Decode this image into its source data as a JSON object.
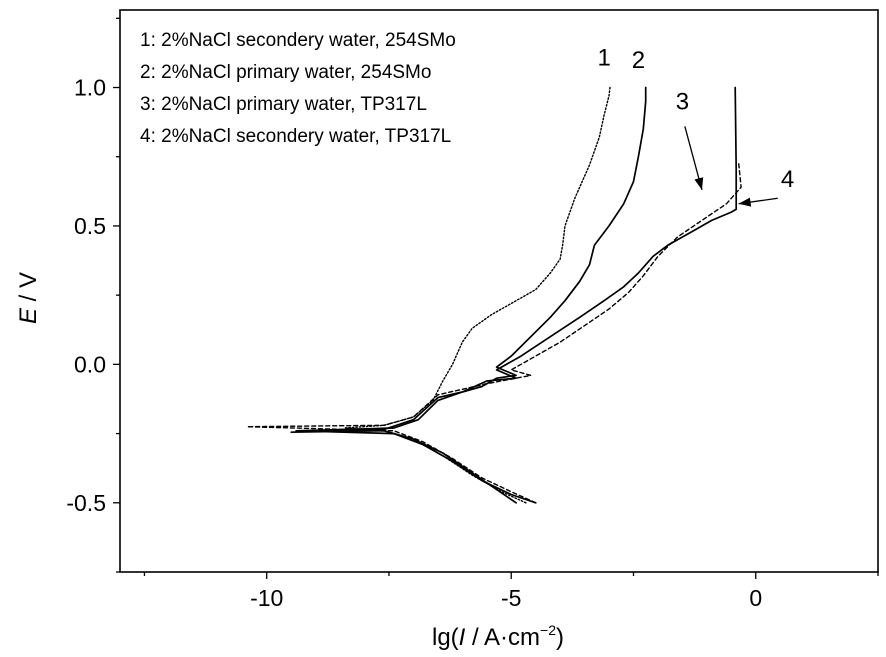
{
  "chart_data": {
    "type": "line",
    "title": "",
    "xlabel_parts": [
      "lg(",
      "I",
      " / A·cm",
      "−2",
      ")"
    ],
    "ylabel_parts": [
      "E",
      " / V"
    ],
    "xlim": [
      -13,
      2.5
    ],
    "ylim": [
      -0.75,
      1.28
    ],
    "x_ticks": [
      -10,
      -5,
      0
    ],
    "x_tick_labels": [
      "-10",
      "-5",
      "0"
    ],
    "y_ticks": [
      -0.5,
      0.0,
      0.5,
      1.0
    ],
    "y_tick_labels": [
      "-0.5",
      "0.0",
      "0.5",
      "1.0"
    ],
    "legend": [
      "1: 2%NaCl secondery water, 254SMo",
      "2: 2%NaCl primary water, 254SMo",
      "3: 2%NaCl primary water, TP317L",
      "4: 2%NaCl secondery water, TP317L"
    ],
    "series": [
      {
        "name": "1",
        "style": "dotted",
        "points": [
          [
            -4.7,
            -0.5
          ],
          [
            -5.2,
            -0.46
          ],
          [
            -5.8,
            -0.4
          ],
          [
            -6.4,
            -0.33
          ],
          [
            -7.0,
            -0.27
          ],
          [
            -7.6,
            -0.24
          ],
          [
            -8.4,
            -0.23
          ],
          [
            -7.6,
            -0.22
          ],
          [
            -7.0,
            -0.19
          ],
          [
            -6.6,
            -0.13
          ],
          [
            -6.4,
            -0.06
          ],
          [
            -6.2,
            0.0
          ],
          [
            -6.0,
            0.08
          ],
          [
            -5.8,
            0.13
          ],
          [
            -5.4,
            0.18
          ],
          [
            -5.0,
            0.22
          ],
          [
            -4.5,
            0.27
          ],
          [
            -4.2,
            0.33
          ],
          [
            -4.0,
            0.38
          ],
          [
            -3.95,
            0.43
          ],
          [
            -3.9,
            0.5
          ],
          [
            -3.7,
            0.6
          ],
          [
            -3.4,
            0.72
          ],
          [
            -3.2,
            0.82
          ],
          [
            -3.1,
            0.9
          ],
          [
            -3.0,
            0.97
          ],
          [
            -2.98,
            1.0
          ]
        ]
      },
      {
        "name": "2",
        "style": "solid",
        "points": [
          [
            -4.5,
            -0.5
          ],
          [
            -5.0,
            -0.47
          ],
          [
            -5.6,
            -0.42
          ],
          [
            -6.2,
            -0.35
          ],
          [
            -6.8,
            -0.29
          ],
          [
            -7.4,
            -0.25
          ],
          [
            -9.4,
            -0.24
          ],
          [
            -7.4,
            -0.23
          ],
          [
            -6.9,
            -0.2
          ],
          [
            -6.5,
            -0.13
          ],
          [
            -6.0,
            -0.1
          ],
          [
            -5.6,
            -0.08
          ],
          [
            -5.3,
            -0.05
          ],
          [
            -4.9,
            -0.04
          ],
          [
            -5.3,
            -0.01
          ],
          [
            -5.0,
            0.03
          ],
          [
            -4.6,
            0.1
          ],
          [
            -4.2,
            0.17
          ],
          [
            -3.9,
            0.23
          ],
          [
            -3.6,
            0.3
          ],
          [
            -3.4,
            0.36
          ],
          [
            -3.3,
            0.43
          ],
          [
            -3.0,
            0.5
          ],
          [
            -2.7,
            0.58
          ],
          [
            -2.5,
            0.66
          ],
          [
            -2.4,
            0.75
          ],
          [
            -2.3,
            0.85
          ],
          [
            -2.25,
            0.95
          ],
          [
            -2.25,
            1.0
          ]
        ]
      },
      {
        "name": "3",
        "style": "dashed",
        "points": [
          [
            -4.5,
            -0.5
          ],
          [
            -5.0,
            -0.46
          ],
          [
            -5.6,
            -0.41
          ],
          [
            -6.2,
            -0.34
          ],
          [
            -6.8,
            -0.28
          ],
          [
            -7.4,
            -0.24
          ],
          [
            -10.4,
            -0.225
          ],
          [
            -7.6,
            -0.22
          ],
          [
            -7.0,
            -0.19
          ],
          [
            -6.5,
            -0.11
          ],
          [
            -6.0,
            -0.09
          ],
          [
            -5.5,
            -0.07
          ],
          [
            -4.6,
            -0.04
          ],
          [
            -5.0,
            -0.02
          ],
          [
            -4.6,
            0.02
          ],
          [
            -4.0,
            0.08
          ],
          [
            -3.5,
            0.14
          ],
          [
            -3.0,
            0.2
          ],
          [
            -2.6,
            0.26
          ],
          [
            -2.3,
            0.32
          ],
          [
            -2.0,
            0.39
          ],
          [
            -1.6,
            0.46
          ],
          [
            -1.1,
            0.52
          ],
          [
            -0.6,
            0.58
          ],
          [
            -0.3,
            0.64
          ],
          [
            -0.35,
            0.73
          ]
        ]
      },
      {
        "name": "4",
        "style": "solid",
        "points": [
          [
            -4.9,
            -0.5
          ],
          [
            -5.4,
            -0.44
          ],
          [
            -5.9,
            -0.38
          ],
          [
            -6.4,
            -0.32
          ],
          [
            -7.0,
            -0.27
          ],
          [
            -7.6,
            -0.24
          ],
          [
            -9.5,
            -0.245
          ],
          [
            -7.6,
            -0.235
          ],
          [
            -7.0,
            -0.2
          ],
          [
            -6.5,
            -0.12
          ],
          [
            -6.0,
            -0.1
          ],
          [
            -5.5,
            -0.06
          ],
          [
            -4.9,
            -0.05
          ],
          [
            -5.3,
            -0.02
          ],
          [
            -4.8,
            0.03
          ],
          [
            -4.2,
            0.1
          ],
          [
            -3.6,
            0.17
          ],
          [
            -3.1,
            0.23
          ],
          [
            -2.7,
            0.28
          ],
          [
            -2.4,
            0.33
          ],
          [
            -2.1,
            0.39
          ],
          [
            -1.8,
            0.43
          ],
          [
            -1.3,
            0.48
          ],
          [
            -0.9,
            0.52
          ],
          [
            -0.5,
            0.55
          ],
          [
            -0.4,
            0.56
          ],
          [
            -0.4,
            0.7
          ],
          [
            -0.42,
            1.0
          ]
        ]
      }
    ],
    "curve_labels": [
      {
        "text": "1",
        "x": -3.1,
        "y": 1.08
      },
      {
        "text": "2",
        "x": -2.4,
        "y": 1.07
      },
      {
        "text": "3",
        "x": -1.5,
        "y": 0.92
      },
      {
        "text": "4",
        "x": 0.65,
        "y": 0.64
      }
    ],
    "arrows": [
      {
        "label": "3",
        "from": [
          -1.45,
          0.86
        ],
        "to": [
          -1.1,
          0.63
        ]
      },
      {
        "label": "4",
        "from": [
          0.45,
          0.6
        ],
        "to": [
          -0.35,
          0.58
        ]
      }
    ]
  }
}
